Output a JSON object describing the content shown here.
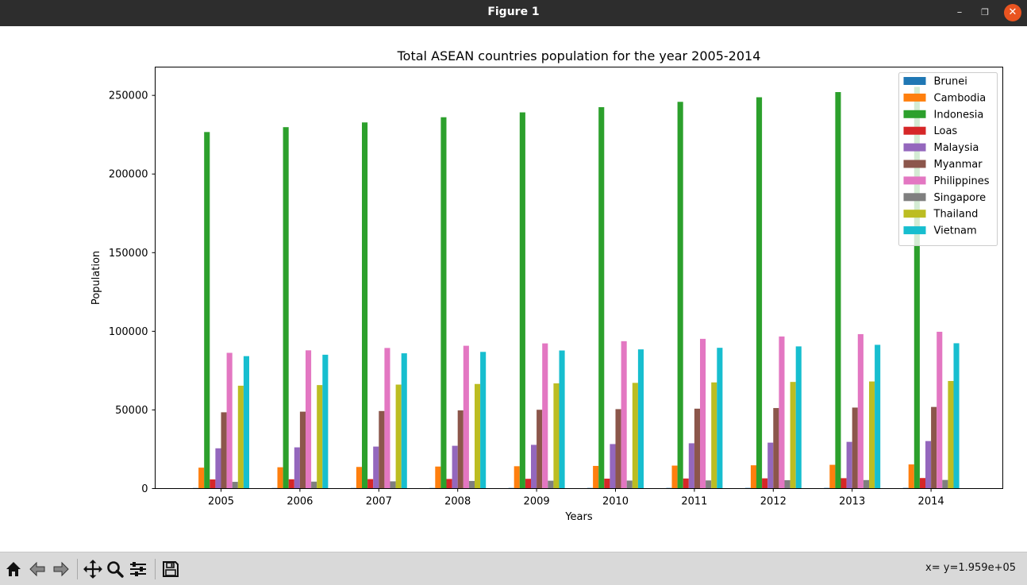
{
  "window": {
    "title": "Figure 1",
    "minimize": "–",
    "maximize": "❐",
    "close": "✕"
  },
  "status": {
    "coords": "x= y=1.959e+05"
  },
  "toolbar": {
    "buttons": [
      "home-icon",
      "back-icon",
      "forward-icon",
      "pan-icon",
      "zoom-icon",
      "configure-icon",
      "save-icon"
    ]
  },
  "colors": {
    "Brunei": "#1f77b4",
    "Cambodia": "#ff7f0e",
    "Indonesia": "#2ca02c",
    "Loas": "#d62728",
    "Malaysia": "#9467bd",
    "Myanmar": "#8c564b",
    "Philippines": "#e377c2",
    "Singapore": "#7f7f7f",
    "Thailand": "#bcbd22",
    "Vietnam": "#17becf"
  },
  "chart_data": {
    "type": "bar",
    "title": "Total ASEAN countries population for the year 2005-2014",
    "xlabel": "Years",
    "ylabel": "Population",
    "categories": [
      "2005",
      "2006",
      "2007",
      "2008",
      "2009",
      "2010",
      "2011",
      "2012",
      "2013",
      "2014"
    ],
    "yticks": [
      0,
      50000,
      100000,
      150000,
      200000,
      250000
    ],
    "ylim": [
      0,
      268000
    ],
    "grid": false,
    "legend": "top-right",
    "series": [
      {
        "name": "Brunei",
        "values": [
          370,
          375,
          381,
          388,
          394,
          401,
          406,
          412,
          418,
          423
        ]
      },
      {
        "name": "Cambodia",
        "values": [
          13300,
          13550,
          13750,
          14000,
          14200,
          14400,
          14600,
          14800,
          15100,
          15350
        ]
      },
      {
        "name": "Indonesia",
        "values": [
          226700,
          229800,
          232800,
          236100,
          239200,
          242500,
          245900,
          248800,
          252100,
          255400
        ]
      },
      {
        "name": "Loas",
        "values": [
          5800,
          5900,
          6000,
          6100,
          6200,
          6300,
          6400,
          6500,
          6600,
          6700
        ]
      },
      {
        "name": "Malaysia",
        "values": [
          25600,
          26200,
          26700,
          27200,
          27800,
          28300,
          28800,
          29200,
          29700,
          30200
        ]
      },
      {
        "name": "Myanmar",
        "values": [
          48500,
          48900,
          49300,
          49700,
          50100,
          50500,
          50800,
          51200,
          51500,
          51900
        ]
      },
      {
        "name": "Philippines",
        "values": [
          86300,
          87900,
          89400,
          90800,
          92300,
          93700,
          95200,
          96700,
          98200,
          99700
        ]
      },
      {
        "name": "Singapore",
        "values": [
          4270,
          4400,
          4590,
          4840,
          4990,
          5080,
          5180,
          5310,
          5400,
          5470
        ]
      },
      {
        "name": "Thailand",
        "values": [
          65400,
          65800,
          66100,
          66500,
          66900,
          67200,
          67500,
          67800,
          68100,
          68400
        ]
      },
      {
        "name": "Vietnam",
        "values": [
          84200,
          85100,
          86000,
          86900,
          87800,
          88500,
          89500,
          90400,
          91400,
          92400
        ]
      }
    ]
  }
}
